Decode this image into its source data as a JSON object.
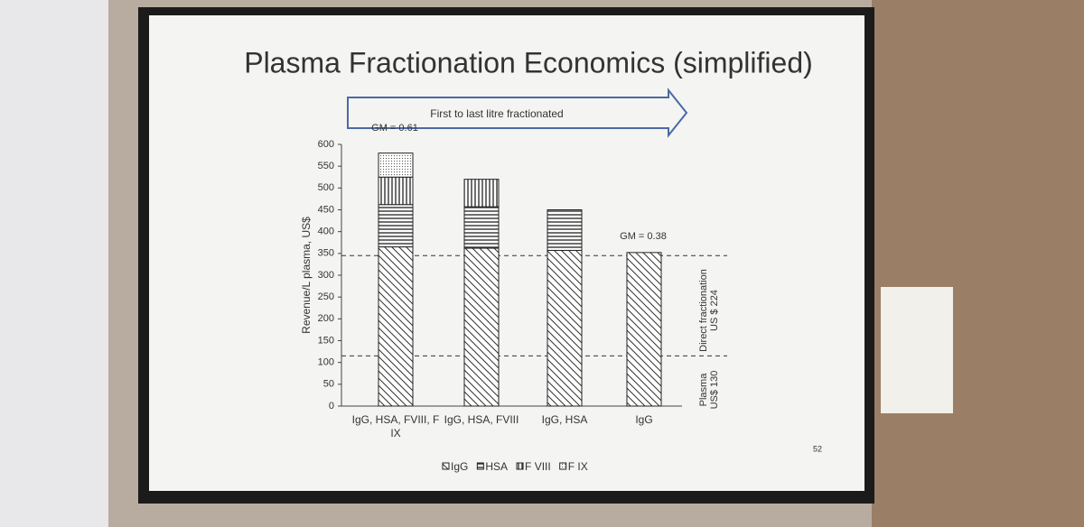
{
  "chart_data": {
    "type": "stacked_bar",
    "title": "Plasma Fractionation Economics (simplified)",
    "arrow_label": "First to last litre fractionated",
    "y_label": "Revenue/L plasma, US$",
    "annotations": [
      "GM = 0.61",
      "GM = 0.38"
    ],
    "side_labels": [
      "Direct fractionation US $ 224",
      "Plasma US$ 130"
    ],
    "page_number": "52",
    "categories": [
      "IgG, HSA, FVIII, F IX",
      "IgG, HSA, FVIII",
      "IgG, HSA",
      "IgG"
    ],
    "series": [
      {
        "name": "IgG",
        "color": "#222222",
        "pattern": "diagonal",
        "values": [
          365,
          362,
          357,
          352
        ]
      },
      {
        "name": "HSA",
        "color": "#222222",
        "pattern": "horizontal",
        "values": [
          97,
          95,
          93,
          null
        ]
      },
      {
        "name": "F VIII",
        "color": "#222222",
        "pattern": "vertical",
        "values": [
          63,
          63,
          null,
          null
        ]
      },
      {
        "name": "F IX",
        "color": "#222222",
        "pattern": "dotted",
        "values": [
          55,
          null,
          null,
          null
        ]
      }
    ],
    "reference_lines": [
      345,
      115
    ],
    "ylim": [
      0,
      600
    ],
    "yticks": [
      0,
      50,
      100,
      150,
      200,
      250,
      300,
      350,
      400,
      450,
      500,
      550,
      600
    ],
    "legend": "bottom"
  }
}
